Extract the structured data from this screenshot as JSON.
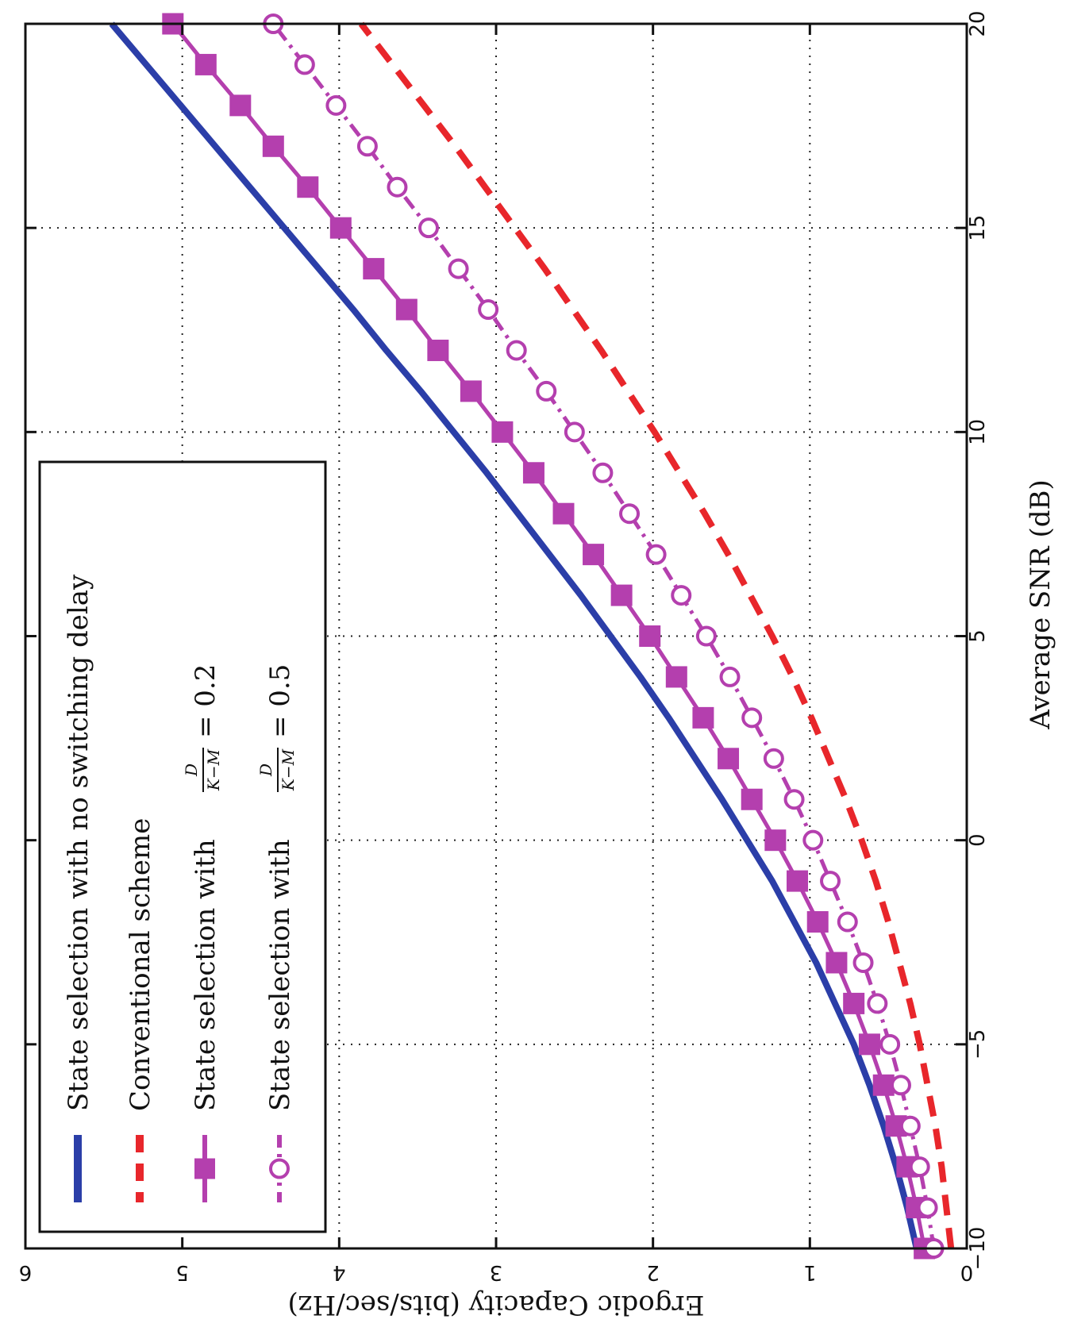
{
  "chart_data": {
    "type": "line",
    "orientation": "rotated-90-clockwise",
    "xlabel": "Average SNR (dB)",
    "ylabel": "Ergodic Capacity (bits/sec/Hz)",
    "xlim": [
      -10,
      20
    ],
    "ylim": [
      0,
      6
    ],
    "xticks": [
      "−10",
      "−5",
      "0",
      "5",
      "10",
      "15",
      "20"
    ],
    "yticks": [
      "0",
      "1",
      "2",
      "3",
      "4",
      "5",
      "6"
    ],
    "grid": true,
    "legend_position": "top-left",
    "series": [
      {
        "name": "State selection with no switching delay",
        "color": "#2b3ea8",
        "style": "solid",
        "marker": "none",
        "x": [
          -10,
          -9,
          -8,
          -7,
          -6,
          -5,
          -4,
          -3,
          -2,
          -1,
          0,
          1,
          2,
          3,
          4,
          5,
          6,
          7,
          8,
          9,
          10,
          11,
          12,
          13,
          14,
          15,
          16,
          17,
          18,
          19,
          20
        ],
        "y": [
          0.32,
          0.38,
          0.45,
          0.53,
          0.62,
          0.72,
          0.84,
          0.96,
          1.1,
          1.24,
          1.4,
          1.56,
          1.73,
          1.9,
          2.08,
          2.27,
          2.46,
          2.66,
          2.86,
          3.06,
          3.27,
          3.48,
          3.7,
          3.91,
          4.13,
          4.35,
          4.57,
          4.79,
          5.01,
          5.23,
          5.45
        ]
      },
      {
        "name": "Conventional scheme",
        "color": "#e8262b",
        "style": "dashed",
        "marker": "none",
        "x": [
          -10,
          -9,
          -8,
          -7,
          -6,
          -5,
          -4,
          -3,
          -2,
          -1,
          0,
          1,
          2,
          3,
          4,
          5,
          6,
          7,
          8,
          9,
          10,
          11,
          12,
          13,
          14,
          15,
          16,
          17,
          18,
          19,
          20
        ],
        "y": [
          0.1,
          0.13,
          0.16,
          0.2,
          0.25,
          0.3,
          0.36,
          0.43,
          0.5,
          0.58,
          0.67,
          0.77,
          0.88,
          0.99,
          1.11,
          1.24,
          1.38,
          1.52,
          1.67,
          1.83,
          1.99,
          2.16,
          2.33,
          2.51,
          2.69,
          2.88,
          3.07,
          3.26,
          3.46,
          3.66,
          3.86
        ]
      },
      {
        "name": "State selection with",
        "color": "#b43fae",
        "style": "solid",
        "marker": "square",
        "x": [
          -10,
          -9,
          -8,
          -7,
          -6,
          -5,
          -4,
          -3,
          -2,
          -1,
          0,
          1,
          2,
          3,
          4,
          5,
          6,
          7,
          8,
          9,
          10,
          11,
          12,
          13,
          14,
          15,
          16,
          17,
          18,
          19,
          20
        ],
        "y": [
          0.27,
          0.32,
          0.38,
          0.45,
          0.53,
          0.62,
          0.72,
          0.83,
          0.95,
          1.08,
          1.22,
          1.37,
          1.52,
          1.68,
          1.85,
          2.02,
          2.2,
          2.38,
          2.57,
          2.76,
          2.96,
          3.16,
          3.37,
          3.57,
          3.78,
          3.99,
          4.2,
          4.42,
          4.63,
          4.85,
          5.06
        ]
      },
      {
        "name": "State selection with",
        "color": "#b43fae",
        "style": "dash-dot",
        "marker": "circle",
        "x": [
          -10,
          -9,
          -8,
          -7,
          -6,
          -5,
          -4,
          -3,
          -2,
          -1,
          0,
          1,
          2,
          3,
          4,
          5,
          6,
          7,
          8,
          9,
          10,
          11,
          12,
          13,
          14,
          15,
          16,
          17,
          18,
          19,
          20
        ],
        "y": [
          0.21,
          0.25,
          0.3,
          0.36,
          0.42,
          0.49,
          0.57,
          0.66,
          0.76,
          0.87,
          0.98,
          1.1,
          1.23,
          1.37,
          1.51,
          1.66,
          1.82,
          1.98,
          2.15,
          2.32,
          2.5,
          2.68,
          2.87,
          3.05,
          3.24,
          3.43,
          3.63,
          3.82,
          4.02,
          4.22,
          4.42
        ]
      }
    ],
    "legend_fraction": {
      "numerator": "D",
      "denominator": "K−M",
      "values": [
        "= 0.2",
        "= 0.5"
      ]
    }
  }
}
